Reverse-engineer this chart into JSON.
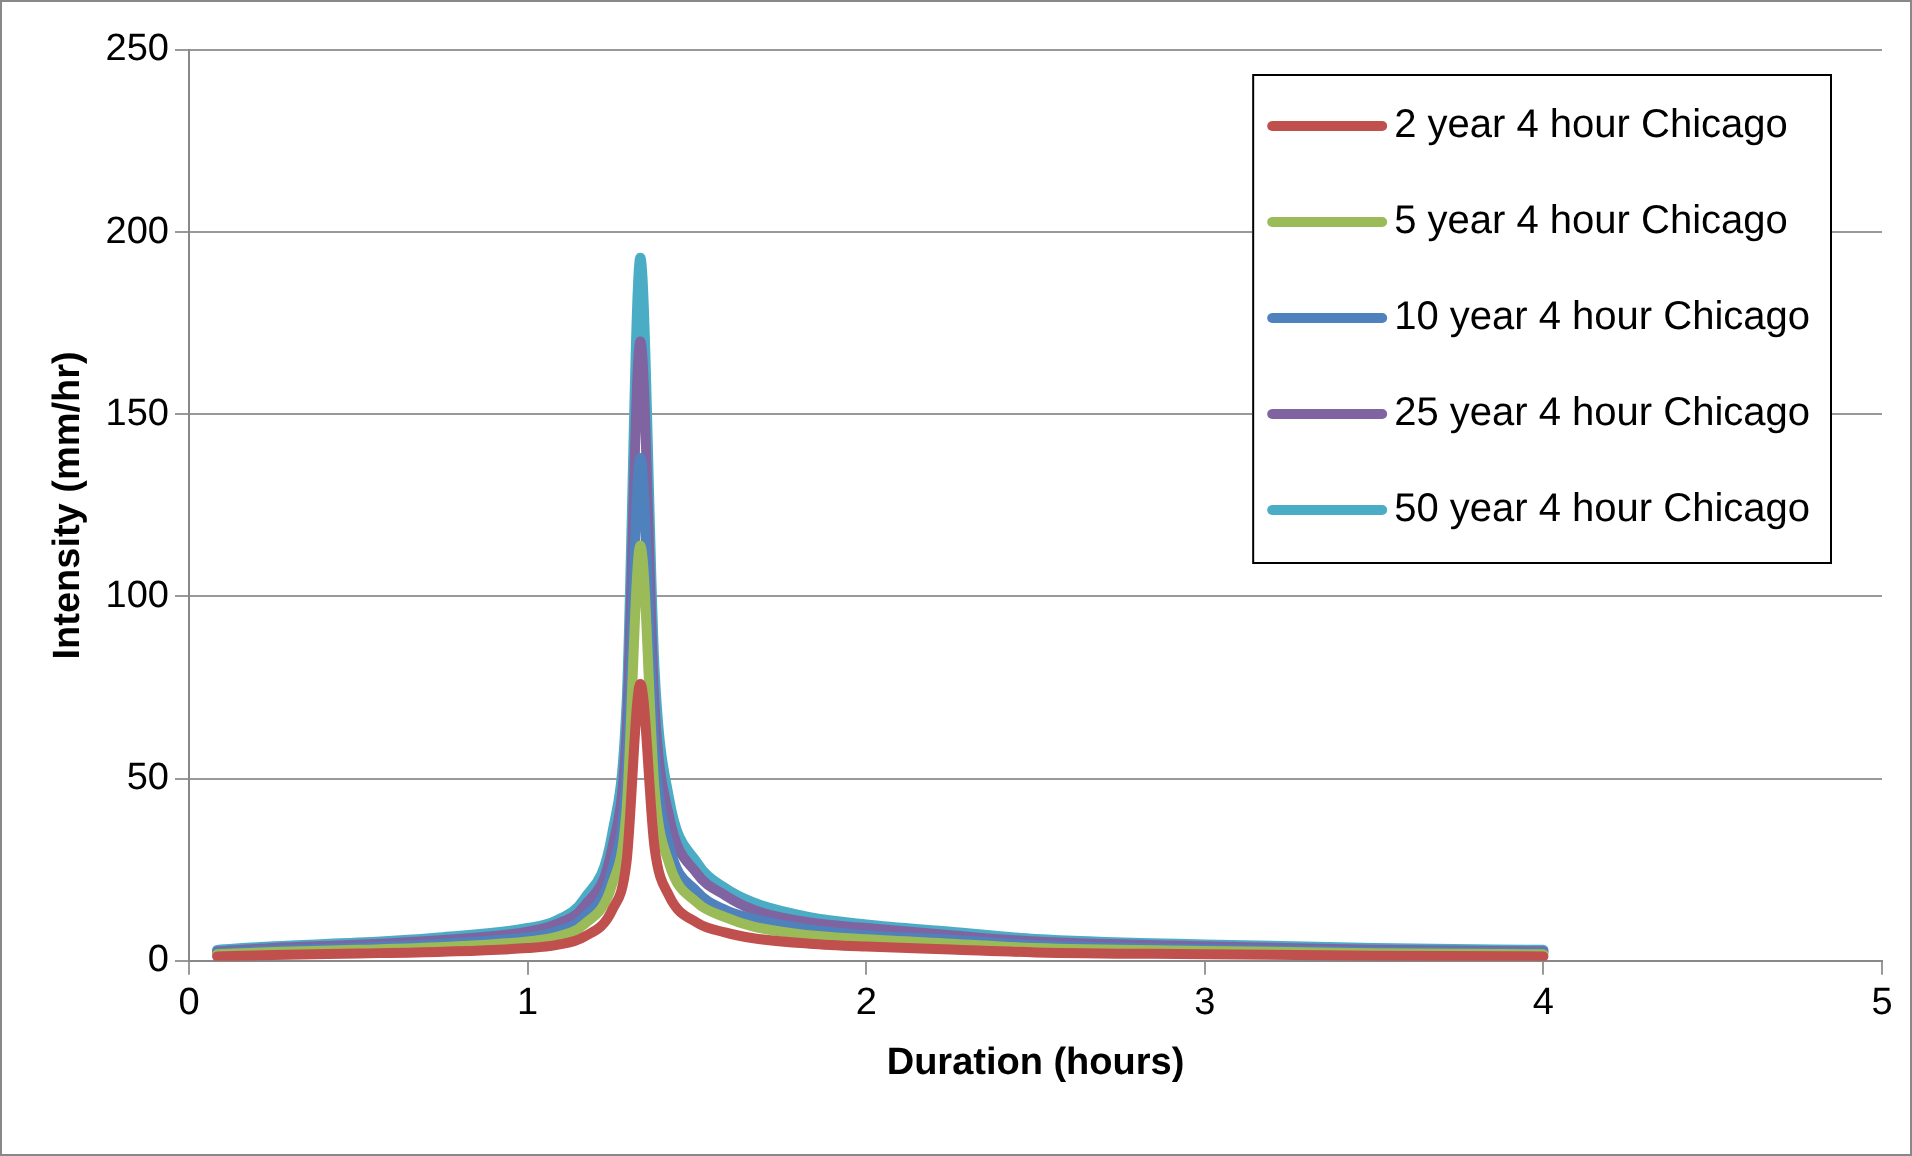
{
  "chart_data": {
    "type": "line",
    "xlabel": "Duration (hours)",
    "ylabel": "Intensity (mm/hr)",
    "x": [
      0.083,
      0.25,
      0.5,
      0.75,
      1.0,
      1.083,
      1.167,
      1.25,
      1.292,
      1.333,
      1.375,
      1.417,
      1.5,
      1.583,
      1.667,
      1.833,
      2,
      2.25,
      2.5,
      3,
      3.5,
      4.0
    ],
    "series": [
      {
        "name": "2 year 4 hour Chicago",
        "color": "#c0504d",
        "values": [
          1.2,
          1.6,
          2,
          2.5,
          3.5,
          4.3,
          6.6,
          14,
          27,
          76,
          31,
          18,
          10.5,
          7.8,
          6.2,
          4.7,
          3.9,
          3.1,
          2.3,
          1.8,
          1.4,
          1.2
        ]
      },
      {
        "name": "5 year 4 hour Chicago",
        "color": "#9bbb59",
        "values": [
          1.8,
          2.4,
          3,
          3.8,
          5.3,
          6.5,
          10,
          21,
          41,
          114,
          47,
          27,
          16,
          12,
          9.4,
          7,
          5.9,
          4.7,
          3.5,
          2.7,
          2.1,
          1.8
        ]
      },
      {
        "name": "10 year 4 hour Chicago",
        "color": "#4f81bd",
        "values": [
          2.2,
          2.9,
          3.6,
          4.7,
          6.5,
          8,
          12,
          25,
          50,
          138,
          58,
          32,
          19,
          14,
          11.5,
          8.6,
          7,
          5.8,
          4.3,
          3.2,
          2.5,
          2.2
        ]
      },
      {
        "name": "25 year 4 hour Chicago",
        "color": "#8064a2",
        "values": [
          2.6,
          3.5,
          4.4,
          5.7,
          8,
          10,
          15,
          31,
          62,
          170,
          70,
          40,
          24,
          18,
          14,
          10.5,
          9,
          7,
          5.3,
          4,
          3,
          2.6
        ]
      },
      {
        "name": "50 year 4 hour Chicago",
        "color": "#4bacc6",
        "values": [
          3,
          4,
          5,
          6.5,
          9,
          11,
          17,
          35,
          70,
          193,
          80,
          45,
          27,
          20,
          16,
          12,
          10,
          8,
          6,
          4.5,
          3.5,
          3
        ]
      }
    ],
    "xlim": [
      0,
      5
    ],
    "xticks": [
      0,
      1,
      2,
      3,
      4,
      5
    ],
    "ylim": [
      0,
      250
    ],
    "yticks": [
      0,
      50,
      100,
      150,
      200,
      250
    ],
    "grid": "y",
    "legend": "top right",
    "marker": "none",
    "line_style": "solid"
  }
}
